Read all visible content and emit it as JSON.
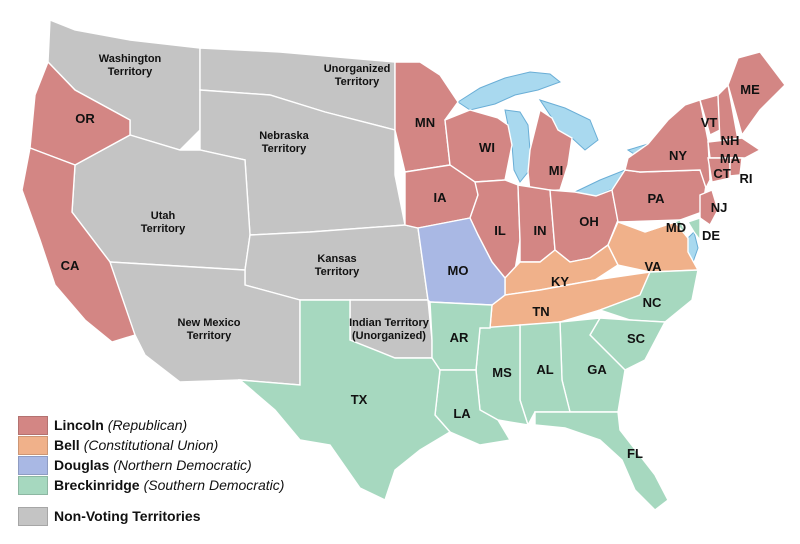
{
  "colors": {
    "lincoln": "#d38684",
    "bell": "#f0b18a",
    "douglas": "#a9b8e4",
    "breckinridge": "#a6d8bf",
    "territory": "#c4c4c4",
    "water": "#a9d9ef"
  },
  "legend": [
    {
      "key": "lincoln",
      "name": "Lincoln",
      "party": "(Republican)"
    },
    {
      "key": "bell",
      "name": "Bell",
      "party": "(Constitutional Union)"
    },
    {
      "key": "douglas",
      "name": "Douglas",
      "party": "(Northern Democratic)"
    },
    {
      "key": "breckinridge",
      "name": "Breckinridge",
      "party": "(Southern Democratic)"
    },
    {
      "key": "territory",
      "name": "Non-Voting Territories",
      "party": ""
    }
  ],
  "territory_labels": [
    [
      "Washington",
      "Territory"
    ],
    [
      "Unorganized",
      "Territory"
    ],
    [
      "Nebraska",
      "Territory"
    ],
    [
      "Utah",
      "Territory"
    ],
    [
      "Kansas",
      "Territory"
    ],
    [
      "New Mexico",
      "Territory"
    ],
    [
      "Indian Territory",
      "(Unorganized)"
    ]
  ],
  "states": {
    "lincoln": [
      "OR",
      "CA",
      "MN",
      "IA",
      "WI",
      "MI",
      "IL",
      "IN",
      "OH",
      "PA",
      "NY",
      "VT",
      "NH",
      "ME",
      "MA",
      "CT",
      "RI",
      "NJ"
    ],
    "bell": [
      "KY",
      "TN",
      "VA"
    ],
    "douglas": [
      "MO"
    ],
    "breckinridge": [
      "MD",
      "DE",
      "NC",
      "SC",
      "GA",
      "FL",
      "AL",
      "MS",
      "LA",
      "AR",
      "TX"
    ]
  }
}
